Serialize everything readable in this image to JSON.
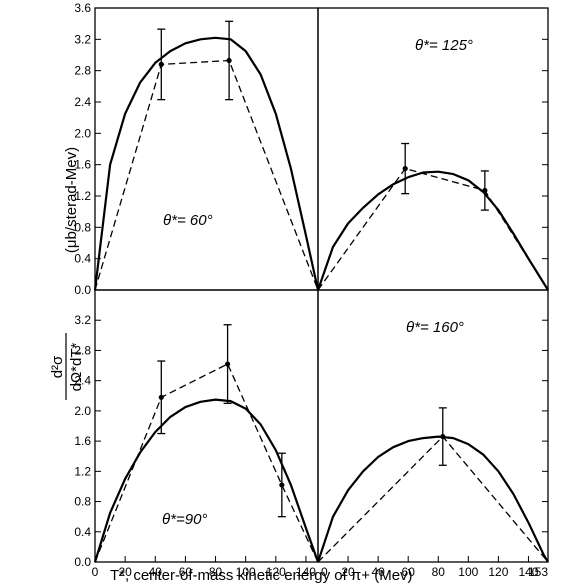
{
  "chart_data": {
    "type": "line",
    "xlabel": "T*, center-of-mass kinetic energy of π+ (Mev)",
    "ylabel_numerator": "d²σ",
    "ylabel_denominator": "dΩ*dT*",
    "ylabel_units": "(μb/sterad-Mev)",
    "x_ticks_left": [
      "0",
      "20",
      "40",
      "60",
      "80",
      "100",
      "120",
      "140"
    ],
    "x_ticks_right": [
      "0",
      "20",
      "40",
      "60",
      "80",
      "100",
      "120",
      "140",
      "153"
    ],
    "x_tick_values_left": [
      0,
      20,
      40,
      60,
      80,
      100,
      120,
      140
    ],
    "x_tick_values_right": [
      0,
      20,
      40,
      60,
      80,
      100,
      120,
      140,
      153
    ],
    "xlim_left": [
      0,
      148
    ],
    "xlim_right": [
      0,
      153
    ],
    "panels": [
      {
        "id": "top-left",
        "label": "θ*= 60°",
        "ylim": [
          0,
          3.6
        ],
        "y_ticks": [
          "0.0",
          "0.4",
          "0.8",
          "1.2",
          "1.6",
          "2.0",
          "2.4",
          "2.8",
          "3.2",
          "3.6"
        ],
        "y_tick_values": [
          0,
          0.4,
          0.8,
          1.2,
          1.6,
          2.0,
          2.4,
          2.8,
          3.2,
          3.6
        ],
        "theory": [
          [
            0,
            0
          ],
          [
            10,
            1.6
          ],
          [
            20,
            2.25
          ],
          [
            30,
            2.65
          ],
          [
            40,
            2.9
          ],
          [
            50,
            3.05
          ],
          [
            60,
            3.15
          ],
          [
            70,
            3.2
          ],
          [
            80,
            3.22
          ],
          [
            90,
            3.2
          ],
          [
            100,
            3.05
          ],
          [
            110,
            2.75
          ],
          [
            120,
            2.25
          ],
          [
            130,
            1.55
          ],
          [
            140,
            0.7
          ],
          [
            148,
            0
          ]
        ],
        "points": [
          {
            "x": 44,
            "y": 2.88,
            "err": 0.45
          },
          {
            "x": 89,
            "y": 2.93,
            "err": 0.5
          }
        ],
        "dashed": [
          [
            0,
            0
          ],
          [
            44,
            2.88
          ],
          [
            89,
            2.93
          ],
          [
            148,
            0
          ]
        ]
      },
      {
        "id": "top-right",
        "label": "θ*= 125°",
        "ylim": [
          0,
          3.6
        ],
        "y_ticks": [],
        "y_tick_values": [],
        "theory": [
          [
            0,
            0
          ],
          [
            10,
            0.55
          ],
          [
            20,
            0.85
          ],
          [
            30,
            1.05
          ],
          [
            40,
            1.22
          ],
          [
            50,
            1.35
          ],
          [
            60,
            1.44
          ],
          [
            70,
            1.5
          ],
          [
            80,
            1.51
          ],
          [
            90,
            1.48
          ],
          [
            100,
            1.4
          ],
          [
            110,
            1.25
          ],
          [
            120,
            1.02
          ],
          [
            130,
            0.72
          ],
          [
            140,
            0.4
          ],
          [
            153,
            0
          ]
        ],
        "points": [
          {
            "x": 58,
            "y": 1.55,
            "err": 0.32
          },
          {
            "x": 111,
            "y": 1.27,
            "err": 0.25
          }
        ],
        "dashed": [
          [
            0,
            0
          ],
          [
            58,
            1.55
          ],
          [
            111,
            1.27
          ],
          [
            153,
            0
          ]
        ]
      },
      {
        "id": "bottom-left",
        "label": "θ*=90°",
        "ylim": [
          0,
          3.6
        ],
        "y_ticks": [
          "0.0",
          "0.4",
          "0.8",
          "1.2",
          "1.6",
          "2.0",
          "2.4",
          "2.8",
          "3.2"
        ],
        "y_tick_values": [
          0,
          0.4,
          0.8,
          1.2,
          1.6,
          2.0,
          2.4,
          2.8,
          3.2
        ],
        "theory": [
          [
            0,
            0
          ],
          [
            10,
            0.65
          ],
          [
            20,
            1.1
          ],
          [
            30,
            1.45
          ],
          [
            40,
            1.72
          ],
          [
            50,
            1.92
          ],
          [
            60,
            2.05
          ],
          [
            70,
            2.12
          ],
          [
            80,
            2.15
          ],
          [
            90,
            2.13
          ],
          [
            100,
            2.03
          ],
          [
            110,
            1.82
          ],
          [
            120,
            1.48
          ],
          [
            130,
            1.02
          ],
          [
            140,
            0.45
          ],
          [
            148,
            0
          ]
        ],
        "points": [
          {
            "x": 44,
            "y": 2.18,
            "err": 0.48
          },
          {
            "x": 88,
            "y": 2.62,
            "err": 0.52
          },
          {
            "x": 124,
            "y": 1.02,
            "err": 0.42
          }
        ],
        "dashed": [
          [
            0,
            0
          ],
          [
            44,
            2.18
          ],
          [
            88,
            2.62
          ],
          [
            124,
            1.02
          ],
          [
            148,
            0
          ]
        ]
      },
      {
        "id": "bottom-right",
        "label": "θ*= 160°",
        "ylim": [
          0,
          3.6
        ],
        "y_ticks": [],
        "y_tick_values": [],
        "theory": [
          [
            0,
            0
          ],
          [
            10,
            0.6
          ],
          [
            20,
            0.95
          ],
          [
            30,
            1.2
          ],
          [
            40,
            1.39
          ],
          [
            50,
            1.52
          ],
          [
            60,
            1.6
          ],
          [
            70,
            1.64
          ],
          [
            80,
            1.66
          ],
          [
            90,
            1.64
          ],
          [
            100,
            1.56
          ],
          [
            110,
            1.42
          ],
          [
            120,
            1.2
          ],
          [
            130,
            0.9
          ],
          [
            140,
            0.52
          ],
          [
            150,
            0.1
          ],
          [
            153,
            0
          ]
        ],
        "points": [
          {
            "x": 83,
            "y": 1.66,
            "err": 0.38
          }
        ],
        "dashed": [
          [
            0,
            0
          ],
          [
            83,
            1.66
          ],
          [
            153,
            0
          ]
        ]
      }
    ]
  }
}
